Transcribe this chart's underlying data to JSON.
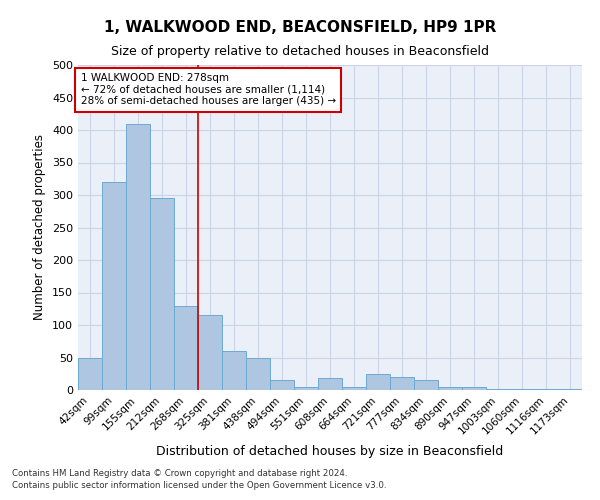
{
  "title": "1, WALKWOOD END, BEACONSFIELD, HP9 1PR",
  "subtitle": "Size of property relative to detached houses in Beaconsfield",
  "xlabel": "Distribution of detached houses by size in Beaconsfield",
  "ylabel": "Number of detached properties",
  "categories": [
    "42sqm",
    "99sqm",
    "155sqm",
    "212sqm",
    "268sqm",
    "325sqm",
    "381sqm",
    "438sqm",
    "494sqm",
    "551sqm",
    "608sqm",
    "664sqm",
    "721sqm",
    "777sqm",
    "834sqm",
    "890sqm",
    "947sqm",
    "1003sqm",
    "1060sqm",
    "1116sqm",
    "1173sqm"
  ],
  "values": [
    50,
    320,
    410,
    295,
    130,
    115,
    60,
    50,
    15,
    5,
    18,
    5,
    25,
    20,
    15,
    5,
    5,
    2,
    2,
    2,
    2
  ],
  "bar_color": "#aec6e0",
  "bar_edge_color": "#6aaad4",
  "grid_color": "#ccd5e8",
  "bg_color": "#eaeff8",
  "property_line_color": "#cc0000",
  "property_line_index": 4,
  "annotation_text": "1 WALKWOOD END: 278sqm\n← 72% of detached houses are smaller (1,114)\n28% of semi-detached houses are larger (435) →",
  "annotation_box_color": "#cc0000",
  "footer_line1": "Contains HM Land Registry data © Crown copyright and database right 2024.",
  "footer_line2": "Contains public sector information licensed under the Open Government Licence v3.0.",
  "ylim": [
    0,
    500
  ],
  "yticks": [
    0,
    50,
    100,
    150,
    200,
    250,
    300,
    350,
    400,
    450,
    500
  ],
  "title_fontsize": 11,
  "subtitle_fontsize": 9
}
